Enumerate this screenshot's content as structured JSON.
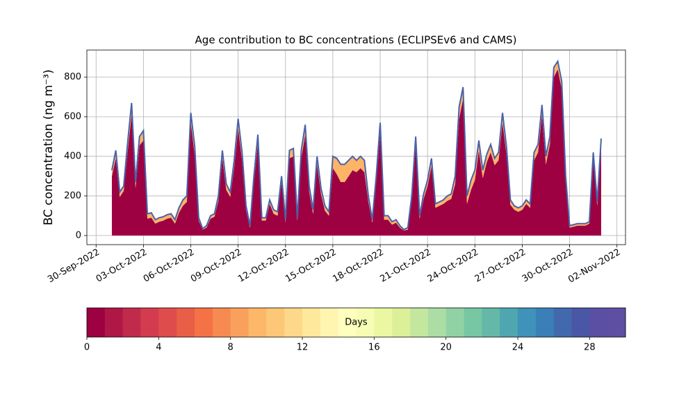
{
  "chart_data": [
    {
      "type": "stacked_area",
      "title": "Age contribution to BC concentrations (ECLIPSEv6 and CAMS)",
      "y_label": "BC concentration (ng m⁻³)",
      "x": [
        "2022-10-01T00:00",
        "2022-10-01T06:00",
        "2022-10-01T12:00",
        "2022-10-01T18:00",
        "2022-10-02T00:00",
        "2022-10-02T06:00",
        "2022-10-02T12:00",
        "2022-10-02T18:00",
        "2022-10-03T00:00",
        "2022-10-03T06:00",
        "2022-10-03T12:00",
        "2022-10-03T18:00",
        "2022-10-04T00:00",
        "2022-10-04T06:00",
        "2022-10-04T12:00",
        "2022-10-04T18:00",
        "2022-10-05T00:00",
        "2022-10-05T06:00",
        "2022-10-05T12:00",
        "2022-10-05T18:00",
        "2022-10-06T00:00",
        "2022-10-06T06:00",
        "2022-10-06T12:00",
        "2022-10-06T18:00",
        "2022-10-07T00:00",
        "2022-10-07T06:00",
        "2022-10-07T12:00",
        "2022-10-07T18:00",
        "2022-10-08T00:00",
        "2022-10-08T06:00",
        "2022-10-08T12:00",
        "2022-10-08T18:00",
        "2022-10-09T00:00",
        "2022-10-09T06:00",
        "2022-10-09T12:00",
        "2022-10-09T18:00",
        "2022-10-10T00:00",
        "2022-10-10T06:00",
        "2022-10-10T12:00",
        "2022-10-10T18:00",
        "2022-10-11T00:00",
        "2022-10-11T06:00",
        "2022-10-11T12:00",
        "2022-10-11T18:00",
        "2022-10-12T00:00",
        "2022-10-12T06:00",
        "2022-10-12T12:00",
        "2022-10-12T18:00",
        "2022-10-13T00:00",
        "2022-10-13T06:00",
        "2022-10-13T12:00",
        "2022-10-13T18:00",
        "2022-10-14T00:00",
        "2022-10-14T06:00",
        "2022-10-14T12:00",
        "2022-10-14T18:00",
        "2022-10-15T00:00",
        "2022-10-15T06:00",
        "2022-10-15T12:00",
        "2022-10-15T18:00",
        "2022-10-16T00:00",
        "2022-10-16T06:00",
        "2022-10-16T12:00",
        "2022-10-16T18:00",
        "2022-10-17T00:00",
        "2022-10-17T06:00",
        "2022-10-17T12:00",
        "2022-10-17T18:00",
        "2022-10-18T00:00",
        "2022-10-18T06:00",
        "2022-10-18T12:00",
        "2022-10-18T18:00",
        "2022-10-19T00:00",
        "2022-10-19T06:00",
        "2022-10-19T12:00",
        "2022-10-19T18:00",
        "2022-10-20T00:00",
        "2022-10-20T06:00",
        "2022-10-20T12:00",
        "2022-10-20T18:00",
        "2022-10-21T00:00",
        "2022-10-21T06:00",
        "2022-10-21T12:00",
        "2022-10-21T18:00",
        "2022-10-22T00:00",
        "2022-10-22T06:00",
        "2022-10-22T12:00",
        "2022-10-22T18:00",
        "2022-10-23T00:00",
        "2022-10-23T06:00",
        "2022-10-23T12:00",
        "2022-10-23T18:00",
        "2022-10-24T00:00",
        "2022-10-24T06:00",
        "2022-10-24T12:00",
        "2022-10-24T18:00",
        "2022-10-25T00:00",
        "2022-10-25T06:00",
        "2022-10-25T12:00",
        "2022-10-25T18:00",
        "2022-10-26T00:00",
        "2022-10-26T06:00",
        "2022-10-26T12:00",
        "2022-10-26T18:00",
        "2022-10-27T00:00",
        "2022-10-27T06:00",
        "2022-10-27T12:00",
        "2022-10-27T18:00",
        "2022-10-28T00:00",
        "2022-10-28T06:00",
        "2022-10-28T12:00",
        "2022-10-28T18:00",
        "2022-10-29T00:00",
        "2022-10-29T06:00",
        "2022-10-29T12:00",
        "2022-10-29T18:00",
        "2022-10-30T00:00",
        "2022-10-30T06:00",
        "2022-10-30T12:00",
        "2022-10-30T18:00",
        "2022-10-31T00:00",
        "2022-10-31T06:00",
        "2022-10-31T12:00",
        "2022-10-31T18:00",
        "2022-11-01T00:00"
      ],
      "series": [
        {
          "color": "#9e0142",
          "values": [
            300,
            390,
            195,
            225,
            425,
            610,
            240,
            455,
            480,
            85,
            90,
            60,
            70,
            75,
            85,
            90,
            60,
            115,
            150,
            170,
            570,
            405,
            75,
            30,
            40,
            85,
            95,
            175,
            390,
            230,
            195,
            345,
            540,
            380,
            130,
            40,
            270,
            465,
            75,
            75,
            160,
            110,
            100,
            270,
            65,
            390,
            400,
            75,
            390,
            510,
            220,
            110,
            360,
            210,
            125,
            100,
            340,
            310,
            270,
            270,
            300,
            330,
            320,
            340,
            320,
            170,
            65,
            270,
            520,
            80,
            80,
            55,
            65,
            40,
            25,
            30,
            175,
            455,
            85,
            185,
            250,
            350,
            140,
            150,
            160,
            175,
            185,
            260,
            590,
            690,
            160,
            230,
            280,
            430,
            290,
            370,
            420,
            355,
            380,
            570,
            410,
            155,
            130,
            120,
            130,
            160,
            140,
            380,
            420,
            610,
            360,
            460,
            800,
            840,
            740,
            270,
            40,
            45,
            50,
            50,
            50,
            60,
            380,
            150,
            460
          ]
        },
        {
          "color": "#fdb466",
          "values": [
            30,
            40,
            25,
            25,
            45,
            60,
            30,
            45,
            50,
            25,
            25,
            20,
            20,
            20,
            20,
            20,
            20,
            25,
            30,
            30,
            50,
            45,
            15,
            5,
            10,
            15,
            15,
            25,
            40,
            30,
            25,
            35,
            50,
            40,
            20,
            10,
            30,
            45,
            15,
            15,
            20,
            20,
            20,
            30,
            15,
            40,
            40,
            15,
            40,
            50,
            30,
            20,
            40,
            30,
            25,
            20,
            60,
            80,
            90,
            90,
            80,
            70,
            60,
            60,
            60,
            30,
            15,
            30,
            50,
            20,
            20,
            15,
            15,
            10,
            5,
            10,
            25,
            45,
            15,
            25,
            30,
            40,
            20,
            20,
            20,
            25,
            25,
            40,
            60,
            60,
            40,
            50,
            50,
            50,
            40,
            40,
            40,
            35,
            40,
            50,
            40,
            25,
            20,
            20,
            20,
            20,
            20,
            40,
            40,
            50,
            40,
            40,
            50,
            40,
            40,
            30,
            10,
            10,
            10,
            10,
            10,
            10,
            40,
            20,
            30
          ]
        }
      ],
      "edge_color": "#4a62a8",
      "xlim": [
        "2022-09-29T10:00",
        "2022-11-02T13:00"
      ],
      "xticks": [
        {
          "value": "2022-09-30T00:00",
          "label": "30-Sep-2022"
        },
        {
          "value": "2022-10-03T00:00",
          "label": "03-Oct-2022"
        },
        {
          "value": "2022-10-06T00:00",
          "label": "06-Oct-2022"
        },
        {
          "value": "2022-10-09T00:00",
          "label": "09-Oct-2022"
        },
        {
          "value": "2022-10-12T00:00",
          "label": "12-Oct-2022"
        },
        {
          "value": "2022-10-15T00:00",
          "label": "15-Oct-2022"
        },
        {
          "value": "2022-10-18T00:00",
          "label": "18-Oct-2022"
        },
        {
          "value": "2022-10-21T00:00",
          "label": "21-Oct-2022"
        },
        {
          "value": "2022-10-24T00:00",
          "label": "24-Oct-2022"
        },
        {
          "value": "2022-10-27T00:00",
          "label": "27-Oct-2022"
        },
        {
          "value": "2022-10-30T00:00",
          "label": "30-Oct-2022"
        },
        {
          "value": "2022-11-02T00:00",
          "label": "02-Nov-2022"
        }
      ],
      "ylim": [
        -46,
        937
      ],
      "yticks": [
        0,
        200,
        400,
        600,
        800
      ],
      "grid": true
    },
    {
      "type": "colorbar",
      "label": "Days",
      "colors": [
        "#9e0142",
        "#af1746",
        "#c12b4b",
        "#d33c4e",
        "#de4d4b",
        "#e95e47",
        "#f47245",
        "#f68a51",
        "#f9a15c",
        "#fcb768",
        "#fdc778",
        "#fed88a",
        "#fee89b",
        "#fff5b0",
        "#fffebe",
        "#f7fcb4",
        "#ebf7a1",
        "#dcf099",
        "#c4e79f",
        "#abdda4",
        "#91d2a4",
        "#77c7a4",
        "#63b8a7",
        "#4fa5b0",
        "#3f92b9",
        "#3a7fb8",
        "#4269ae",
        "#4a57a7",
        "#5a4fa3",
        "#5e4fa2"
      ],
      "xlim": [
        0,
        30
      ],
      "xticks": [
        0,
        4,
        8,
        12,
        16,
        20,
        24,
        28
      ]
    }
  ]
}
